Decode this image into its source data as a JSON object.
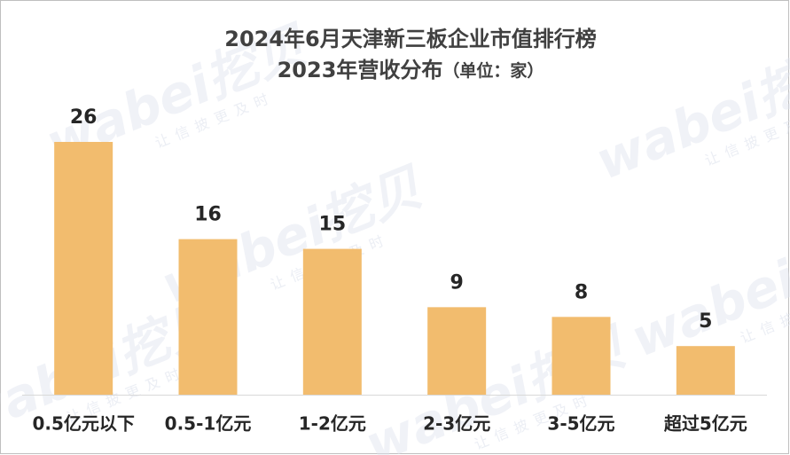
{
  "chart_data": {
    "type": "bar",
    "title": "2024年6月天津新三板企业市值排行榜",
    "subtitle": "2023年营收分布",
    "unit_note": "（单位：家）",
    "watermark": "wabei挖贝",
    "watermark_slogan": "让信披更及时",
    "categories": [
      "0.5亿元以下",
      "0.5-1亿元",
      "1-2亿元",
      "2-3亿元",
      "3-5亿元",
      "超过5亿元"
    ],
    "values": [
      26,
      16,
      15,
      9,
      8,
      5
    ],
    "color": "#f2bc6e"
  }
}
